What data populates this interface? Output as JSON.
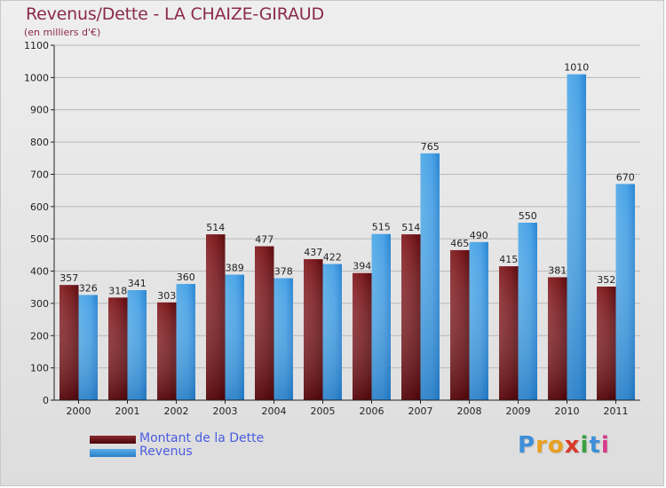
{
  "header": {
    "title": "Revenus/Dette - LA CHAIZE-GIRAUD",
    "subtitle": "(en milliers d'€)"
  },
  "logo": {
    "text": "Proxiti",
    "letters": [
      "P",
      "r",
      "o",
      "x",
      "i",
      "t",
      "i"
    ]
  },
  "chart_data": {
    "type": "bar",
    "title": "Revenus/Dette - LA CHAIZE-GIRAUD",
    "subtitle": "(en milliers d'€)",
    "xlabel": "",
    "ylabel": "",
    "categories": [
      "2000",
      "2001",
      "2002",
      "2003",
      "2004",
      "2005",
      "2006",
      "2007",
      "2008",
      "2009",
      "2010",
      "2011"
    ],
    "series": [
      {
        "name": "Montant de la Dette",
        "color": "#6b0f14",
        "values": [
          357,
          318,
          303,
          514,
          477,
          437,
          394,
          514,
          465,
          415,
          381,
          352
        ]
      },
      {
        "name": "Revenus",
        "color": "#3d98e0",
        "values": [
          326,
          341,
          360,
          389,
          378,
          422,
          515,
          765,
          490,
          550,
          1010,
          670
        ]
      }
    ],
    "ylim": [
      0,
      1100
    ],
    "yticks": [
      0,
      100,
      200,
      300,
      400,
      500,
      600,
      700,
      800,
      900,
      1000,
      1100
    ],
    "grid": true,
    "legend": "bottom-left"
  }
}
